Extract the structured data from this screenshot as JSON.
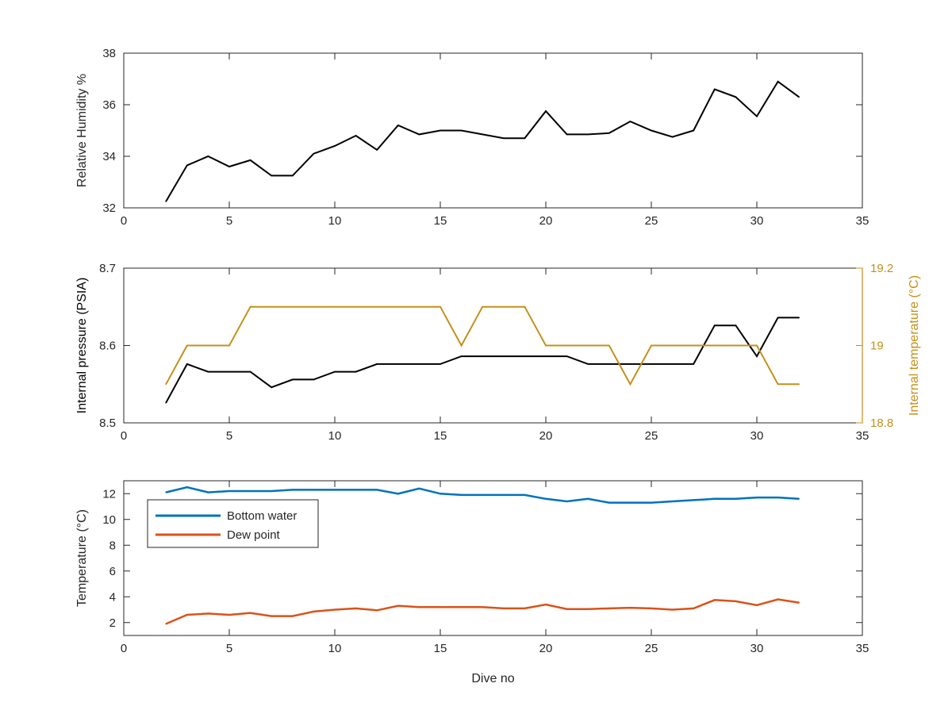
{
  "chart_data": [
    {
      "type": "line",
      "xlabel": "",
      "ylabel": "Relative Humidity %",
      "xlim": [
        0,
        35
      ],
      "ylim": [
        32,
        38
      ],
      "xticks": [
        0,
        5,
        10,
        15,
        20,
        25,
        30,
        35
      ],
      "yticks": [
        32,
        34,
        36,
        38
      ],
      "grid": false,
      "x": [
        2,
        3,
        4,
        5,
        6,
        7,
        8,
        9,
        10,
        11,
        12,
        13,
        14,
        15,
        16,
        17,
        18,
        19,
        20,
        21,
        22,
        23,
        24,
        25,
        26,
        27,
        28,
        29,
        30,
        31,
        32
      ],
      "series": [
        {
          "color": "#000000",
          "values": [
            32.25,
            33.65,
            34.0,
            33.6,
            33.85,
            33.25,
            33.25,
            34.1,
            34.4,
            34.8,
            34.25,
            35.2,
            34.85,
            35.0,
            35.0,
            34.85,
            34.7,
            34.7,
            35.75,
            34.85,
            34.85,
            34.9,
            35.35,
            35.0,
            34.75,
            35.0,
            36.6,
            36.3,
            35.55,
            36.9,
            36.3
          ]
        }
      ]
    },
    {
      "type": "line",
      "xlabel": "",
      "ylabel": "Internal pressure (PSIA)",
      "y2label": "Internal temperature (°C)",
      "xlim": [
        0,
        35
      ],
      "ylim": [
        8.5,
        8.7
      ],
      "y2lim": [
        18.8,
        19.2
      ],
      "xticks": [
        0,
        5,
        10,
        15,
        20,
        25,
        30,
        35
      ],
      "yticks": [
        8.5,
        8.6,
        8.7
      ],
      "yticklabels": [
        "8.5",
        "8.6",
        "8.7"
      ],
      "y2ticks": [
        18.8,
        19.0,
        19.2
      ],
      "y2ticklabels": [
        "18.8",
        "19",
        "19.2"
      ],
      "grid": false,
      "x": [
        2,
        3,
        4,
        5,
        6,
        7,
        8,
        9,
        10,
        11,
        12,
        13,
        14,
        15,
        16,
        17,
        18,
        19,
        20,
        21,
        22,
        23,
        24,
        25,
        26,
        27,
        28,
        29,
        30,
        31,
        32
      ],
      "series": [
        {
          "axis": "left",
          "color": "#000000",
          "values": [
            8.526,
            8.576,
            8.566,
            8.566,
            8.566,
            8.546,
            8.556,
            8.556,
            8.566,
            8.566,
            8.576,
            8.576,
            8.576,
            8.576,
            8.586,
            8.586,
            8.586,
            8.586,
            8.586,
            8.586,
            8.576,
            8.576,
            8.576,
            8.576,
            8.576,
            8.576,
            8.626,
            8.626,
            8.586,
            8.636,
            8.636
          ]
        },
        {
          "axis": "right",
          "color": "#C4901A",
          "values": [
            18.9,
            19.0,
            19.0,
            19.0,
            19.1,
            19.1,
            19.1,
            19.1,
            19.1,
            19.1,
            19.1,
            19.1,
            19.1,
            19.1,
            19.0,
            19.1,
            19.1,
            19.1,
            19.0,
            19.0,
            19.0,
            19.0,
            18.9,
            19.0,
            19.0,
            19.0,
            19.0,
            19.0,
            19.0,
            18.9,
            18.9
          ]
        }
      ]
    },
    {
      "type": "line",
      "xlabel": "Dive no",
      "ylabel": "Temperature (°C)",
      "xlim": [
        0,
        35
      ],
      "ylim": [
        1,
        13
      ],
      "xticks": [
        0,
        5,
        10,
        15,
        20,
        25,
        30,
        35
      ],
      "yticks": [
        2,
        4,
        6,
        8,
        10,
        12
      ],
      "grid": false,
      "legend_position": "top-left",
      "x": [
        2,
        3,
        4,
        5,
        6,
        7,
        8,
        9,
        10,
        11,
        12,
        13,
        14,
        15,
        16,
        17,
        18,
        19,
        20,
        21,
        22,
        23,
        24,
        25,
        26,
        27,
        28,
        29,
        30,
        31,
        32
      ],
      "series": [
        {
          "name": "Bottom water",
          "color": "#0072BD",
          "values": [
            12.1,
            12.5,
            12.1,
            12.2,
            12.2,
            12.2,
            12.3,
            12.3,
            12.3,
            12.3,
            12.3,
            12.0,
            12.4,
            12.0,
            11.9,
            11.9,
            11.9,
            11.9,
            11.6,
            11.4,
            11.6,
            11.3,
            11.3,
            11.3,
            11.4,
            11.5,
            11.6,
            11.6,
            11.7,
            11.7,
            11.6
          ]
        },
        {
          "name": "Dew point",
          "color": "#D95319",
          "values": [
            1.9,
            2.6,
            2.7,
            2.6,
            2.75,
            2.5,
            2.5,
            2.85,
            3.0,
            3.1,
            2.95,
            3.3,
            3.2,
            3.2,
            3.2,
            3.2,
            3.1,
            3.1,
            3.4,
            3.05,
            3.05,
            3.1,
            3.15,
            3.1,
            3.0,
            3.1,
            3.75,
            3.65,
            3.35,
            3.8,
            3.55
          ]
        }
      ]
    }
  ]
}
